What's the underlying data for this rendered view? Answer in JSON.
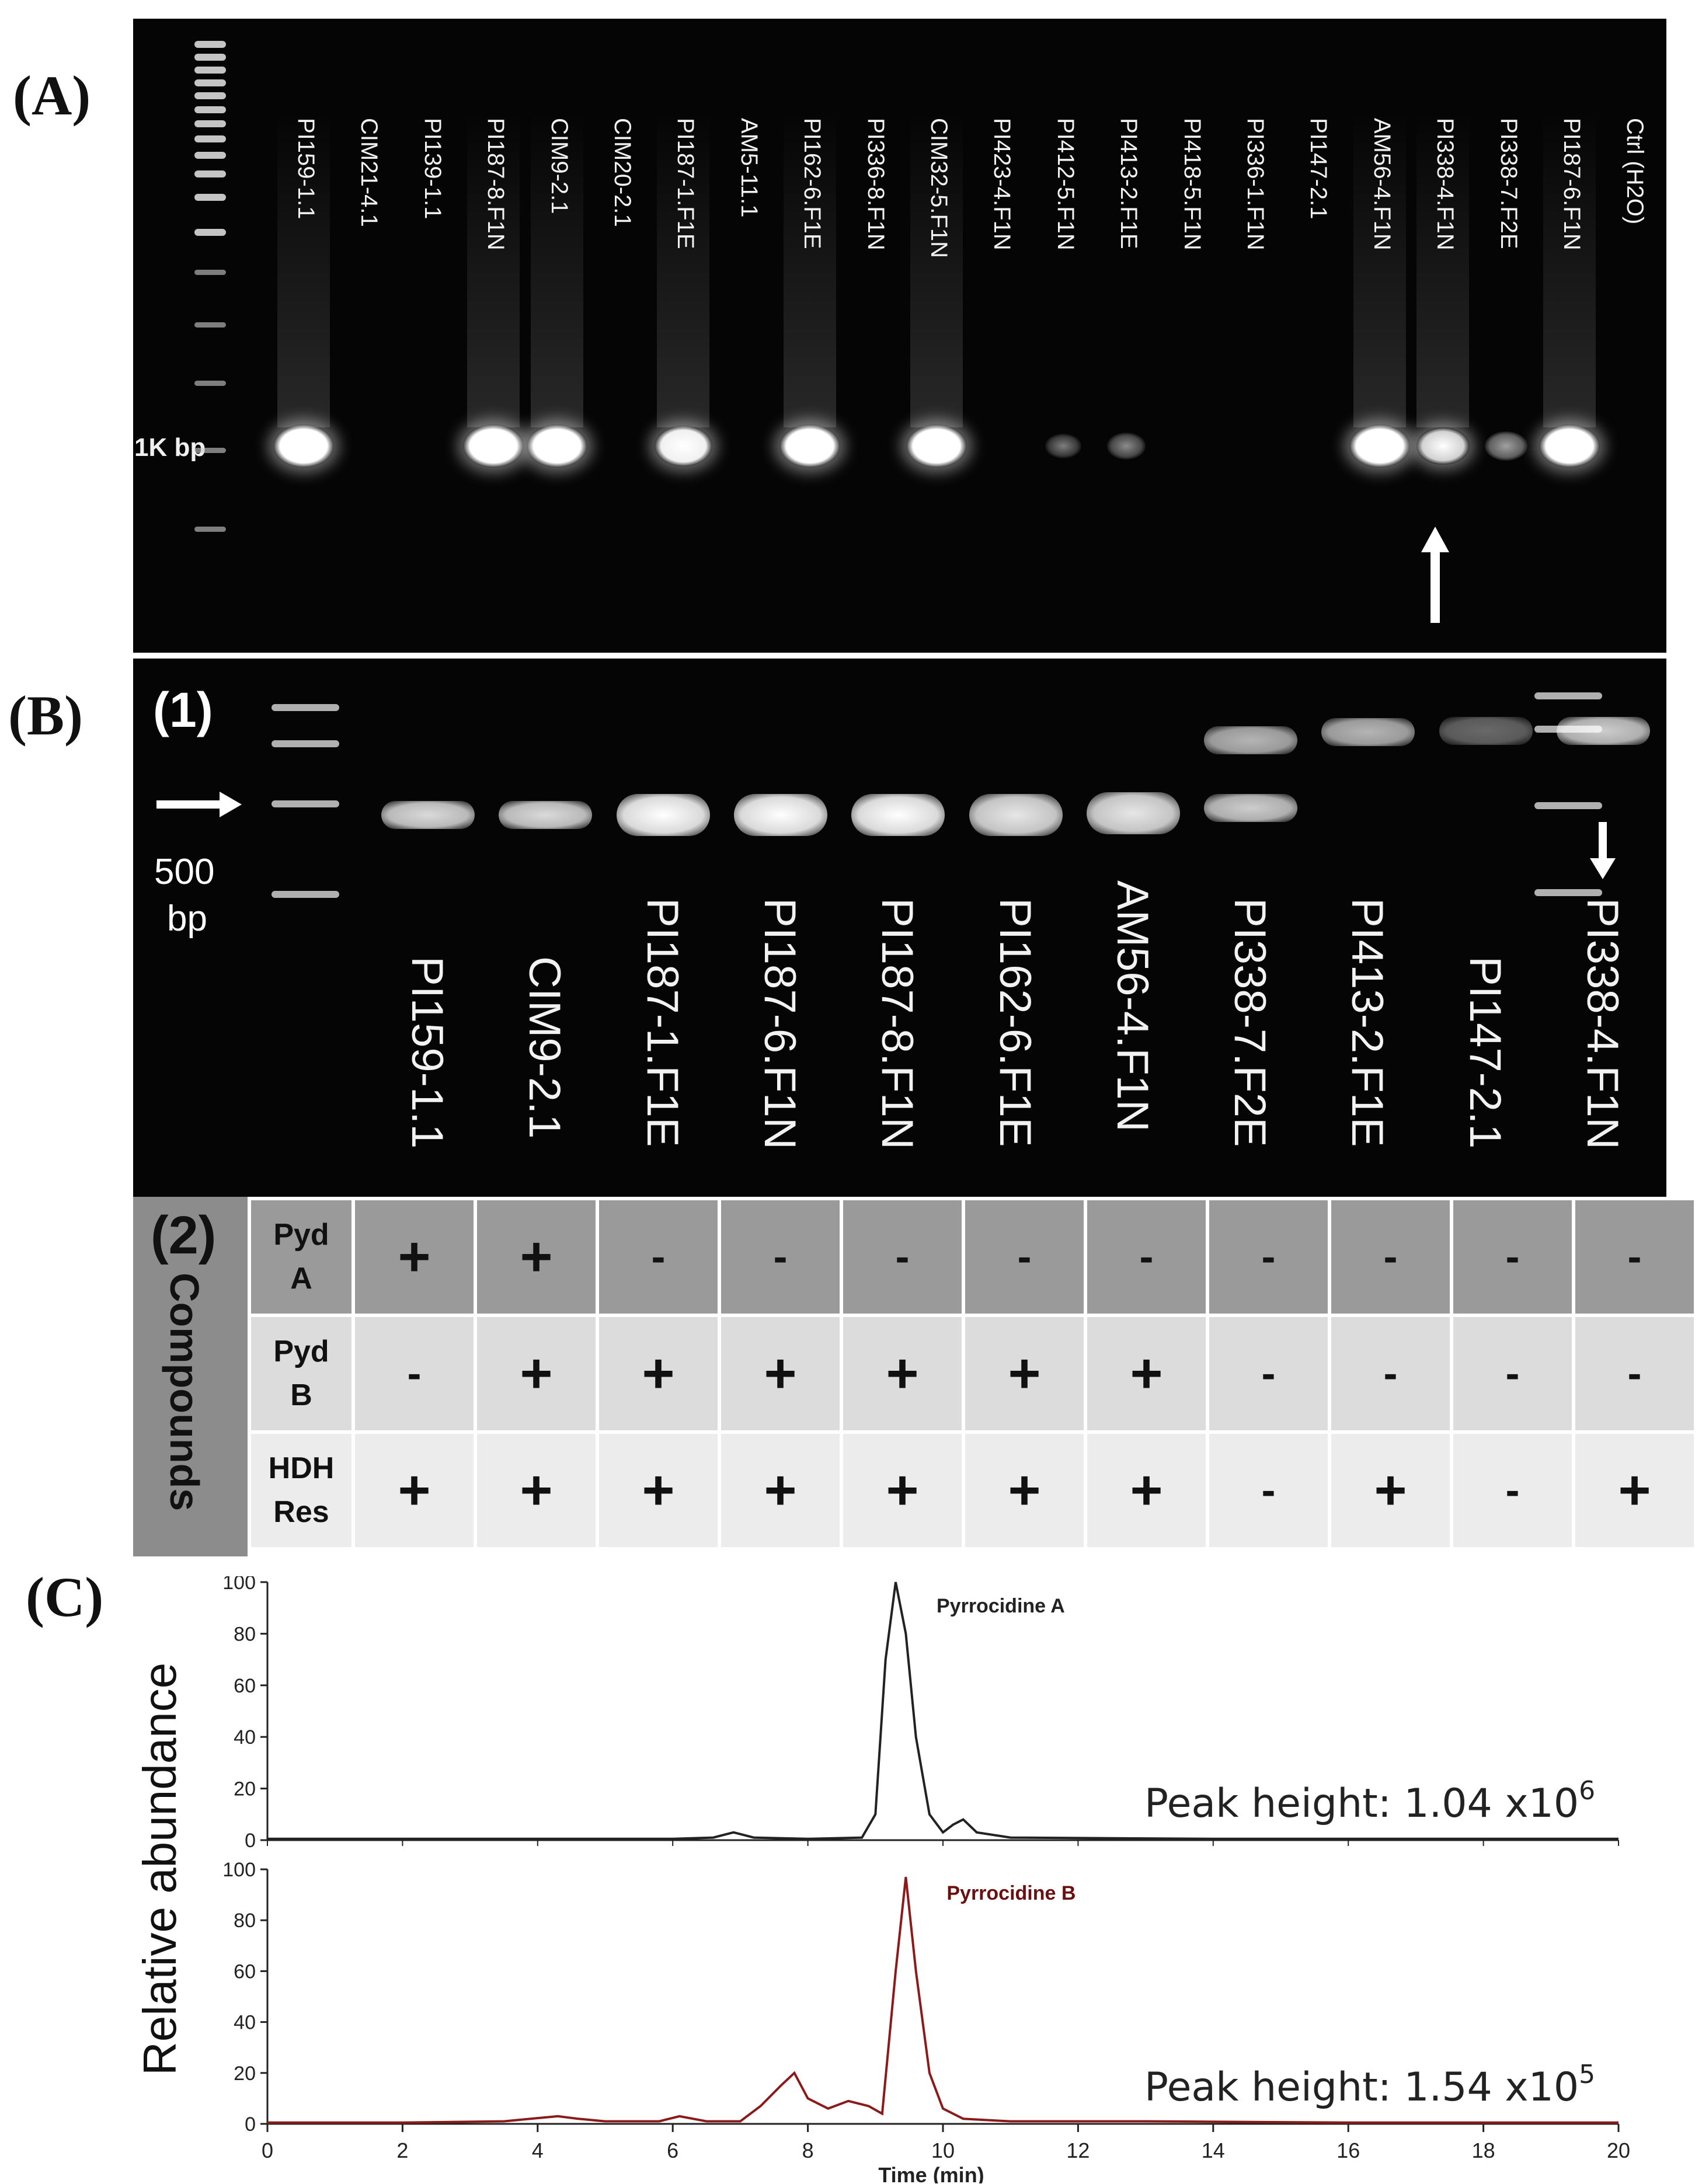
{
  "panels": {
    "a_label": "(A)",
    "b_label": "(B)",
    "c_label": "(C)"
  },
  "panel_a": {
    "ladder_label": "1K bp",
    "lanes": [
      {
        "name": "PI159-1.1",
        "band": 1.0
      },
      {
        "name": "CIM21-4.1",
        "band": 0.0
      },
      {
        "name": "PI139-1.1",
        "band": 0.0
      },
      {
        "name": "PI187-8.F1N",
        "band": 1.0
      },
      {
        "name": "CIM9-2.1",
        "band": 1.0
      },
      {
        "name": "CIM20-2.1",
        "band": 0.0
      },
      {
        "name": "PI187-1.F1E",
        "band": 0.9
      },
      {
        "name": "AM5-11.1",
        "band": 0.0
      },
      {
        "name": "PI162-6.F1E",
        "band": 1.0
      },
      {
        "name": "PI336-8.F1N",
        "band": 0.0
      },
      {
        "name": "CIM32-5.F1N",
        "band": 1.0
      },
      {
        "name": "PI423-4.F1N",
        "band": 0.0
      },
      {
        "name": "PI412-5.F1N",
        "band": 0.05
      },
      {
        "name": "PI413-2.F1E",
        "band": 0.15
      },
      {
        "name": "PI418-5.F1N",
        "band": 0.0
      },
      {
        "name": "PI336-1.F1N",
        "band": 0.0
      },
      {
        "name": "PI147-2.1",
        "band": 0.0
      },
      {
        "name": "AM56-4.F1N",
        "band": 1.0
      },
      {
        "name": "PI338-4.F1N",
        "band": 0.7
      },
      {
        "name": "PI338-7.F2E",
        "band": 0.3
      },
      {
        "name": "PI187-6.F1N",
        "band": 1.0
      },
      {
        "name": "Ctrl (H2O)",
        "band": 0.0
      }
    ]
  },
  "panel_b": {
    "sub1_label": "(1)",
    "sub2_label": "(2)",
    "marker_value": "500",
    "marker_unit": "bp",
    "lanes": [
      "PI159-1.1",
      "CIM9-2.1",
      "PI187-1.F1E",
      "PI187-6.F1N",
      "PI187-8.F1N",
      "PI162-6.F1E",
      "AM56-4.F1N",
      "PI338-7.F2E",
      "PI413-2.F1E",
      "PI147-2.1",
      "PI338-4.F1N"
    ],
    "compounds_title": "Compounds",
    "rows": [
      {
        "label1": "Pyd",
        "label2": "A",
        "values": [
          "+",
          "+",
          "-",
          "-",
          "-",
          "-",
          "-",
          "-",
          "-",
          "-",
          "-"
        ]
      },
      {
        "label1": "Pyd",
        "label2": "B",
        "values": [
          "-",
          "+",
          "+",
          "+",
          "+",
          "+",
          "+",
          "-",
          "-",
          "-",
          "-"
        ]
      },
      {
        "label1": "HDH",
        "label2": "Res",
        "values": [
          "+",
          "+",
          "+",
          "+",
          "+",
          "+",
          "+",
          "-",
          "+",
          "-",
          "+"
        ]
      }
    ]
  },
  "chart_data": [
    {
      "type": "line",
      "title": "Pyrrocidine A",
      "annotation_prefix": "Peak height: 1.04 x10",
      "annotation_exp": "6",
      "ylabel": "Relative abundance",
      "ylim": [
        0,
        100
      ],
      "xlim": [
        0,
        20
      ],
      "yticks": [
        "0",
        "20",
        "40",
        "60",
        "80",
        "100"
      ],
      "color": "#222222",
      "x": [
        0,
        2,
        4,
        6,
        6.6,
        6.9,
        7.2,
        8,
        8.8,
        9.0,
        9.15,
        9.3,
        9.45,
        9.6,
        9.8,
        10.0,
        10.15,
        10.3,
        10.5,
        11,
        14,
        18,
        20
      ],
      "y": [
        0.5,
        0.5,
        0.5,
        0.5,
        1,
        3,
        1,
        0.5,
        1,
        10,
        70,
        100,
        80,
        40,
        10,
        3,
        6,
        8,
        3,
        1,
        0.5,
        0.5,
        0.5
      ]
    },
    {
      "type": "line",
      "title": "Pyrrocidine B",
      "annotation_prefix": "Peak height: 1.54 x10",
      "annotation_exp": "5",
      "ylabel": "",
      "ylim": [
        0,
        100
      ],
      "xlim": [
        0,
        20
      ],
      "xlabel": "Time (min)",
      "xticks": [
        "0",
        "2",
        "4",
        "6",
        "8",
        "10",
        "12",
        "14",
        "16",
        "18",
        "20"
      ],
      "yticks": [
        "0",
        "20",
        "40",
        "60",
        "80",
        "100"
      ],
      "color": "#8b1a1a",
      "x": [
        0,
        2,
        3.5,
        4.3,
        4.6,
        5,
        5.8,
        6.1,
        6.5,
        7,
        7.3,
        7.6,
        7.8,
        8.0,
        8.3,
        8.6,
        8.9,
        9.1,
        9.3,
        9.45,
        9.6,
        9.8,
        10.0,
        10.3,
        11,
        13,
        16,
        20
      ],
      "y": [
        0.5,
        0.5,
        1,
        3,
        2,
        1,
        1,
        3,
        1,
        1,
        7,
        15,
        20,
        10,
        6,
        9,
        7,
        4,
        60,
        97,
        60,
        20,
        6,
        2,
        1,
        1,
        0.5,
        0.5
      ]
    }
  ]
}
